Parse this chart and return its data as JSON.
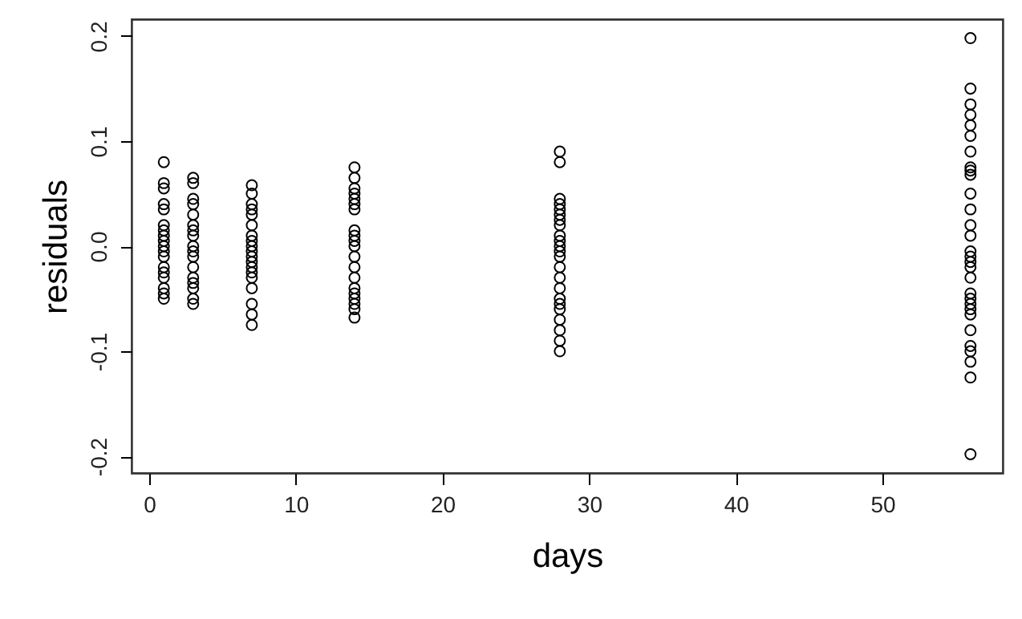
{
  "chart_data": {
    "type": "scatter",
    "xlabel": "days",
    "ylabel": "residuals",
    "xlim": [
      -1.2,
      58.2
    ],
    "xticks": [
      0,
      10,
      20,
      30,
      40,
      50
    ],
    "ylim": [
      -0.216,
      0.216
    ],
    "yticks": [
      -0.2,
      -0.1,
      {
        "value": 0,
        "label": "0.0"
      },
      0.1,
      0.2
    ],
    "grid": false,
    "marker": "circle",
    "series": [
      {
        "color": "#000000",
        "x": [
          1,
          1,
          1,
          1,
          1,
          1,
          1,
          1,
          1,
          1,
          1,
          1,
          1,
          1,
          1,
          1,
          1,
          1,
          3,
          3,
          3,
          3,
          3,
          3,
          3,
          3,
          3,
          3,
          3,
          3,
          3,
          3,
          3,
          3,
          3,
          7,
          7,
          7,
          7,
          7,
          7,
          7,
          7,
          7,
          7,
          7,
          7,
          7,
          7,
          7,
          7,
          7,
          7,
          7,
          14,
          14,
          14,
          14,
          14,
          14,
          14,
          14,
          14,
          14,
          14,
          14,
          14,
          14,
          14,
          14,
          14,
          14,
          14,
          14,
          28,
          28,
          28,
          28,
          28,
          28,
          28,
          28,
          28,
          28,
          28,
          28,
          28,
          28,
          28,
          28,
          28,
          28,
          28,
          28,
          28,
          28,
          28,
          56,
          56,
          56,
          56,
          56,
          56,
          56,
          56,
          56,
          56,
          56,
          56,
          56,
          56,
          56,
          56,
          56,
          56,
          56,
          56,
          56,
          56,
          56,
          56,
          56,
          56,
          56,
          56,
          56,
          56
        ],
        "values": [
          0.08,
          0.06,
          0.055,
          0.04,
          0.035,
          0.02,
          0.015,
          0.01,
          0.005,
          0,
          -0.005,
          -0.01,
          -0.02,
          -0.025,
          -0.03,
          -0.04,
          -0.045,
          -0.05,
          0.065,
          0.06,
          0.045,
          0.04,
          0.03,
          0.02,
          0.015,
          0.01,
          0,
          -0.005,
          -0.01,
          -0.02,
          -0.03,
          -0.035,
          -0.04,
          -0.05,
          -0.055,
          0.058,
          0.05,
          0.04,
          0.035,
          0.03,
          0.02,
          0.01,
          0.005,
          0,
          -0.005,
          -0.01,
          -0.015,
          -0.02,
          -0.025,
          -0.03,
          -0.04,
          -0.055,
          -0.065,
          -0.075,
          0.075,
          0.065,
          0.055,
          0.05,
          0.045,
          0.04,
          0.035,
          0.015,
          0.01,
          0.005,
          0,
          -0.01,
          -0.02,
          -0.03,
          -0.04,
          -0.045,
          -0.05,
          -0.055,
          -0.06,
          -0.068,
          0.09,
          0.08,
          0.045,
          0.04,
          0.035,
          0.03,
          0.025,
          0.02,
          0.01,
          0.005,
          0,
          -0.005,
          -0.01,
          -0.02,
          -0.03,
          -0.04,
          -0.05,
          -0.055,
          -0.06,
          -0.07,
          -0.08,
          -0.09,
          -0.1,
          0.198,
          0.15,
          0.135,
          0.125,
          0.115,
          0.105,
          0.09,
          0.075,
          0.072,
          0.068,
          0.05,
          0.035,
          0.02,
          0.01,
          -0.005,
          -0.01,
          -0.015,
          -0.02,
          -0.03,
          -0.045,
          -0.05,
          -0.055,
          -0.06,
          -0.065,
          -0.08,
          -0.095,
          -0.1,
          -0.11,
          -0.125,
          -0.198
        ]
      }
    ]
  }
}
